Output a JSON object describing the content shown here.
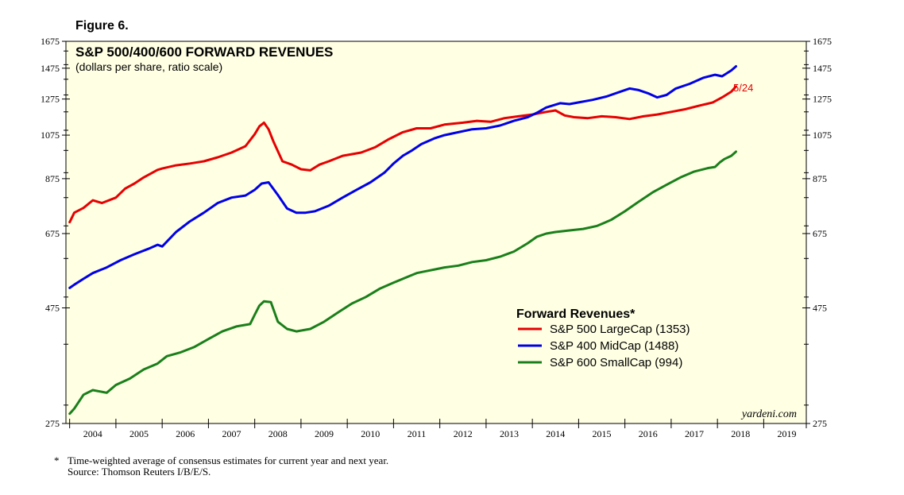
{
  "figure_label": "Figure 6.",
  "footnote_star": "*",
  "footnote": "Time-weighted average of consensus estimates for current year and next year.",
  "source": "Source: Thomson Reuters I/B/E/S.",
  "credit": "yardeni.com",
  "colors": {
    "background": "#ffffe4",
    "largecap": "#e60000",
    "midcap": "#0000e6",
    "smallcap": "#1a7f1a"
  },
  "chart_data": {
    "type": "line",
    "title": "S&P 500/400/600 FORWARD REVENUES",
    "subtitle": "(dollars per share, ratio scale)",
    "scale": "log",
    "ylim": [
      275,
      1675
    ],
    "y_ticks": [
      "1675",
      "1475",
      "1275",
      "1075",
      "875",
      "675",
      "475",
      "275"
    ],
    "y_tick_values": [
      1675,
      1475,
      1275,
      1075,
      875,
      675,
      475,
      275
    ],
    "xlim": [
      2003.92,
      2019.92
    ],
    "x_ticks": [
      "2004",
      "2005",
      "2006",
      "2007",
      "2008",
      "2009",
      "2010",
      "2011",
      "2012",
      "2013",
      "2014",
      "2015",
      "2016",
      "2017",
      "2018",
      "2019"
    ],
    "legend_title": "Forward Revenues*",
    "end_label": "5/24",
    "series": [
      {
        "name": "S&P 500 LargeCap (1353)",
        "color_key": "largecap",
        "x": [
          2004.0,
          2004.1,
          2004.3,
          2004.5,
          2004.7,
          2005.0,
          2005.2,
          2005.4,
          2005.6,
          2005.9,
          2006.0,
          2006.3,
          2006.6,
          2006.9,
          2007.2,
          2007.5,
          2007.8,
          2008.0,
          2008.1,
          2008.2,
          2008.3,
          2008.4,
          2008.6,
          2008.8,
          2009.0,
          2009.2,
          2009.4,
          2009.6,
          2009.9,
          2010.3,
          2010.6,
          2010.9,
          2011.2,
          2011.5,
          2011.8,
          2012.1,
          2012.5,
          2012.8,
          2013.1,
          2013.4,
          2013.7,
          2014.0,
          2014.3,
          2014.5,
          2014.7,
          2014.9,
          2015.2,
          2015.5,
          2015.8,
          2016.1,
          2016.4,
          2016.7,
          2017.0,
          2017.3,
          2017.6,
          2017.9,
          2018.1,
          2018.3,
          2018.4
        ],
        "values": [
          712,
          745,
          762,
          790,
          780,
          800,
          835,
          855,
          880,
          912,
          918,
          932,
          940,
          950,
          968,
          990,
          1020,
          1080,
          1120,
          1140,
          1105,
          1045,
          950,
          935,
          915,
          910,
          935,
          950,
          975,
          990,
          1015,
          1055,
          1090,
          1110,
          1110,
          1130,
          1140,
          1150,
          1145,
          1165,
          1175,
          1185,
          1200,
          1208,
          1180,
          1170,
          1165,
          1175,
          1170,
          1160,
          1175,
          1185,
          1200,
          1215,
          1235,
          1255,
          1285,
          1320,
          1353
        ]
      },
      {
        "name": "S&P 400 MidCap (1488)",
        "color_key": "midcap",
        "x": [
          2004.0,
          2004.1,
          2004.3,
          2004.5,
          2004.8,
          2005.1,
          2005.4,
          2005.7,
          2005.9,
          2006.0,
          2006.3,
          2006.6,
          2006.9,
          2007.2,
          2007.5,
          2007.8,
          2008.0,
          2008.15,
          2008.3,
          2008.5,
          2008.7,
          2008.9,
          2009.1,
          2009.3,
          2009.6,
          2009.9,
          2010.2,
          2010.5,
          2010.8,
          2011.0,
          2011.2,
          2011.4,
          2011.6,
          2011.9,
          2012.1,
          2012.4,
          2012.7,
          2013.0,
          2013.3,
          2013.6,
          2013.9,
          2014.1,
          2014.3,
          2014.6,
          2014.8,
          2015.0,
          2015.3,
          2015.6,
          2015.9,
          2016.1,
          2016.3,
          2016.5,
          2016.7,
          2016.9,
          2017.1,
          2017.4,
          2017.7,
          2017.95,
          2018.1,
          2018.3,
          2018.4
        ],
        "values": [
          522,
          530,
          545,
          560,
          575,
          595,
          612,
          628,
          640,
          635,
          680,
          715,
          745,
          780,
          800,
          808,
          830,
          855,
          860,
          810,
          760,
          745,
          745,
          750,
          770,
          800,
          830,
          860,
          900,
          940,
          975,
          1000,
          1030,
          1060,
          1075,
          1090,
          1105,
          1110,
          1125,
          1150,
          1170,
          1195,
          1225,
          1250,
          1245,
          1255,
          1270,
          1290,
          1320,
          1340,
          1330,
          1310,
          1285,
          1300,
          1340,
          1370,
          1410,
          1430,
          1420,
          1460,
          1488
        ]
      },
      {
        "name": "S&P 600 SmallCap (994)",
        "color_key": "smallcap",
        "x": [
          2004.0,
          2004.1,
          2004.3,
          2004.5,
          2004.8,
          2005.0,
          2005.3,
          2005.6,
          2005.9,
          2006.1,
          2006.4,
          2006.7,
          2007.0,
          2007.3,
          2007.6,
          2007.9,
          2008.0,
          2008.1,
          2008.2,
          2008.35,
          2008.5,
          2008.7,
          2008.9,
          2009.2,
          2009.5,
          2009.8,
          2010.1,
          2010.4,
          2010.7,
          2011.0,
          2011.3,
          2011.5,
          2011.7,
          2011.9,
          2012.1,
          2012.4,
          2012.7,
          2013.0,
          2013.3,
          2013.6,
          2013.9,
          2014.1,
          2014.3,
          2014.5,
          2014.8,
          2015.1,
          2015.4,
          2015.7,
          2016.0,
          2016.3,
          2016.6,
          2016.9,
          2017.2,
          2017.5,
          2017.8,
          2017.95,
          2018.05,
          2018.15,
          2018.3,
          2018.4
        ],
        "values": [
          288,
          295,
          315,
          322,
          318,
          330,
          340,
          355,
          365,
          378,
          385,
          395,
          410,
          425,
          435,
          440,
          460,
          480,
          490,
          488,
          445,
          430,
          425,
          430,
          445,
          465,
          485,
          500,
          520,
          535,
          550,
          560,
          565,
          570,
          575,
          580,
          590,
          595,
          605,
          620,
          645,
          665,
          675,
          680,
          685,
          690,
          700,
          720,
          750,
          785,
          820,
          850,
          880,
          905,
          920,
          925,
          945,
          960,
          975,
          994
        ]
      }
    ]
  }
}
